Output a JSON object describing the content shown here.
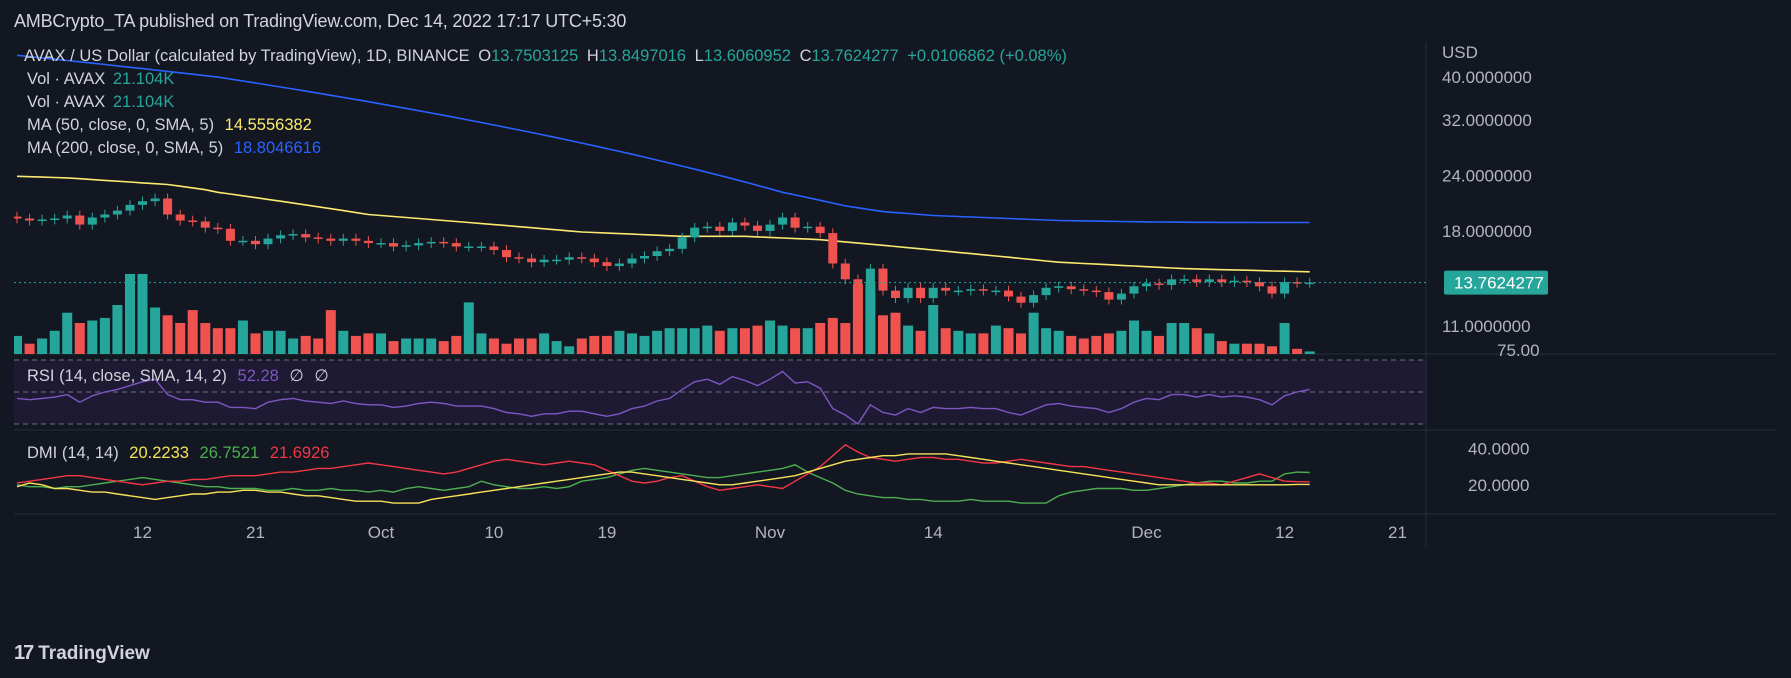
{
  "header": {
    "publisher": "AMBCrypto_TA published on TradingView.com, Dec 14, 2022 17:17 UTC+5:30"
  },
  "legend": {
    "symbol": "AVAX / US Dollar (calculated by TradingView), 1D, BINANCE",
    "o_label": "O",
    "o": "13.7503125",
    "h_label": "H",
    "h": "13.8497016",
    "l_label": "L",
    "l": "13.6060952",
    "c_label": "C",
    "c": "13.7624277",
    "change": "+0.0106862 (+0.08%)",
    "vol1_label": "Vol · AVAX",
    "vol1": "21.104K",
    "vol2_label": "Vol · AVAX",
    "vol2": "21.104K",
    "ma50_label": "MA (50, close, 0, SMA, 5)",
    "ma50": "14.5556382",
    "ma200_label": "MA (200, close, 0, SMA, 5)",
    "ma200": "18.8046616",
    "rsi_label": "RSI (14, close, SMA, 14, 2)",
    "rsi": "52.28",
    "rsi_null1": "∅",
    "rsi_null2": "∅",
    "dmi_label": "DMI (14, 14)",
    "dmi_adx": "20.2233",
    "dmi_plus": "26.7521",
    "dmi_minus": "21.6926"
  },
  "price_axis": {
    "currency": "USD",
    "ticks": [
      "40.0000000",
      "32.0000000",
      "24.0000000",
      "18.0000000",
      "11.0000000"
    ],
    "last_price": "13.7624277",
    "rsi_tick": "75.00"
  },
  "dmi_axis": {
    "ticks": [
      "40.0000",
      "20.0000"
    ]
  },
  "x_axis": {
    "labels": [
      "12",
      "21",
      "Oct",
      "10",
      "19",
      "Nov",
      "14",
      "Dec",
      "12",
      "21"
    ]
  },
  "colors": {
    "up": "#26a69a",
    "down": "#ef5350",
    "ma50": "#fbea6f",
    "ma200": "#2962ff",
    "rsi": "#7e57c2",
    "adx": "#f7e35a",
    "di_plus": "#4caf50",
    "di_minus": "#f23645",
    "price_tag_bg": "#26a69a"
  },
  "footer": {
    "brand": "TradingView",
    "logo_icon": "tradingview-logo-icon"
  },
  "chart_data": {
    "type": "candlestick",
    "title": "AVAX / US Dollar (calculated by TradingView), 1D, BINANCE",
    "ylabel": "USD",
    "ylim": [
      9.5,
      48
    ],
    "y_scale": "log",
    "legend_placement": "top-left",
    "dates": [
      "2022-09-02",
      "2022-09-03",
      "2022-09-04",
      "2022-09-05",
      "2022-09-06",
      "2022-09-07",
      "2022-09-08",
      "2022-09-09",
      "2022-09-10",
      "2022-09-11",
      "2022-09-12",
      "2022-09-13",
      "2022-09-14",
      "2022-09-15",
      "2022-09-16",
      "2022-09-17",
      "2022-09-18",
      "2022-09-19",
      "2022-09-20",
      "2022-09-21",
      "2022-09-22",
      "2022-09-23",
      "2022-09-24",
      "2022-09-25",
      "2022-09-26",
      "2022-09-27",
      "2022-09-28",
      "2022-09-29",
      "2022-09-30",
      "2022-10-01",
      "2022-10-02",
      "2022-10-03",
      "2022-10-04",
      "2022-10-05",
      "2022-10-06",
      "2022-10-07",
      "2022-10-08",
      "2022-10-09",
      "2022-10-10",
      "2022-10-11",
      "2022-10-12",
      "2022-10-13",
      "2022-10-14",
      "2022-10-15",
      "2022-10-16",
      "2022-10-17",
      "2022-10-18",
      "2022-10-19",
      "2022-10-20",
      "2022-10-21",
      "2022-10-22",
      "2022-10-23",
      "2022-10-24",
      "2022-10-25",
      "2022-10-26",
      "2022-10-27",
      "2022-10-28",
      "2022-10-29",
      "2022-10-30",
      "2022-10-31",
      "2022-11-01",
      "2022-11-02",
      "2022-11-03",
      "2022-11-04",
      "2022-11-05",
      "2022-11-06",
      "2022-11-07",
      "2022-11-08",
      "2022-11-09",
      "2022-11-10",
      "2022-11-11",
      "2022-11-12",
      "2022-11-13",
      "2022-11-14",
      "2022-11-15",
      "2022-11-16",
      "2022-11-17",
      "2022-11-18",
      "2022-11-19",
      "2022-11-20",
      "2022-11-21",
      "2022-11-22",
      "2022-11-23",
      "2022-11-24",
      "2022-11-25",
      "2022-11-26",
      "2022-11-27",
      "2022-11-28",
      "2022-11-29",
      "2022-11-30",
      "2022-12-01",
      "2022-12-02",
      "2022-12-03",
      "2022-12-04",
      "2022-12-05",
      "2022-12-06",
      "2022-12-07",
      "2022-12-08",
      "2022-12-09",
      "2022-12-10",
      "2022-12-11",
      "2022-12-12",
      "2022-12-13",
      "2022-12-14"
    ],
    "close": [
      19.2,
      19.0,
      19.1,
      19.2,
      19.5,
      18.6,
      19.3,
      19.6,
      20.0,
      20.6,
      21.0,
      21.3,
      19.6,
      19.0,
      18.9,
      18.3,
      18.2,
      17.1,
      17.1,
      16.8,
      17.3,
      17.6,
      17.7,
      17.4,
      17.3,
      17.1,
      17.3,
      17.1,
      16.9,
      16.9,
      16.6,
      16.7,
      16.9,
      17.0,
      16.9,
      16.6,
      16.6,
      16.6,
      16.3,
      15.7,
      15.6,
      15.3,
      15.5,
      15.5,
      15.7,
      15.6,
      15.3,
      15.0,
      15.2,
      15.6,
      15.8,
      16.2,
      16.4,
      17.4,
      18.3,
      18.4,
      18.0,
      18.8,
      18.5,
      18.0,
      18.6,
      19.3,
      18.3,
      18.4,
      17.8,
      15.2,
      14.0,
      12.3,
      14.8,
      13.2,
      12.7,
      13.4,
      12.7,
      13.4,
      13.2,
      13.2,
      13.3,
      13.2,
      13.2,
      12.8,
      12.4,
      12.9,
      13.4,
      13.5,
      13.3,
      13.2,
      13.1,
      12.6,
      13.0,
      13.5,
      13.7,
      13.6,
      14.0,
      14.0,
      13.8,
      14.0,
      13.8,
      13.9,
      13.8,
      13.5,
      13.0,
      13.8,
      13.75,
      13.76
    ],
    "volume": [
      7,
      4,
      6,
      9,
      16,
      12,
      13,
      14,
      19,
      31,
      31,
      18,
      15,
      12,
      17,
      12,
      10,
      10,
      13,
      8,
      9,
      9,
      6,
      7,
      6,
      17,
      9,
      7,
      8,
      8,
      5,
      6,
      6,
      6,
      5,
      7,
      20,
      8,
      6,
      4,
      6,
      6,
      8,
      5,
      3,
      6,
      7,
      7,
      9,
      8,
      7,
      9,
      10,
      10,
      10,
      11,
      9,
      10,
      10,
      11,
      13,
      11,
      10,
      10,
      12,
      14,
      12,
      27,
      27,
      15,
      16,
      11,
      9,
      19,
      10,
      9,
      8,
      8,
      11,
      10,
      8,
      16,
      10,
      9,
      7,
      6,
      7,
      8,
      9,
      13,
      9,
      7,
      12,
      12,
      10,
      8,
      5,
      4,
      4,
      4,
      3,
      12,
      2,
      1
    ],
    "ma50": [
      23.9,
      23.85,
      23.8,
      23.75,
      23.7,
      23.6,
      23.5,
      23.4,
      23.3,
      23.2,
      23.1,
      23.0,
      22.9,
      22.7,
      22.5,
      22.3,
      22.0,
      21.8,
      21.6,
      21.4,
      21.2,
      21.0,
      20.8,
      20.6,
      20.4,
      20.2,
      20.0,
      19.8,
      19.6,
      19.5,
      19.4,
      19.3,
      19.2,
      19.1,
      19.0,
      18.9,
      18.8,
      18.7,
      18.6,
      18.5,
      18.4,
      18.3,
      18.2,
      18.1,
      18.0,
      17.9,
      17.85,
      17.8,
      17.75,
      17.7,
      17.65,
      17.6,
      17.55,
      17.5,
      17.5,
      17.5,
      17.5,
      17.5,
      17.5,
      17.45,
      17.4,
      17.35,
      17.3,
      17.25,
      17.2,
      17.1,
      17.0,
      16.9,
      16.8,
      16.7,
      16.6,
      16.5,
      16.4,
      16.3,
      16.2,
      16.1,
      16.0,
      15.9,
      15.8,
      15.7,
      15.6,
      15.5,
      15.4,
      15.3,
      15.25,
      15.2,
      15.15,
      15.1,
      15.05,
      15.0,
      14.95,
      14.9,
      14.85,
      14.8,
      14.78,
      14.75,
      14.72,
      14.7,
      14.68,
      14.65,
      14.62,
      14.6,
      14.58,
      14.56
    ],
    "ma200": [
      44.8,
      44.5,
      44.2,
      43.9,
      43.6,
      43.3,
      43.0,
      42.7,
      42.4,
      42.1,
      41.8,
      41.5,
      41.2,
      40.9,
      40.6,
      40.3,
      40.0,
      39.6,
      39.2,
      38.8,
      38.4,
      38.0,
      37.6,
      37.2,
      36.8,
      36.4,
      36.0,
      35.6,
      35.2,
      34.8,
      34.4,
      34.0,
      33.6,
      33.2,
      32.8,
      32.4,
      32.0,
      31.6,
      31.2,
      30.8,
      30.4,
      30.0,
      29.6,
      29.2,
      28.8,
      28.4,
      28.0,
      27.6,
      27.2,
      26.8,
      26.4,
      26.0,
      25.6,
      25.2,
      24.8,
      24.4,
      24.0,
      23.6,
      23.2,
      22.8,
      22.4,
      22.0,
      21.7,
      21.4,
      21.1,
      20.8,
      20.5,
      20.3,
      20.1,
      19.9,
      19.8,
      19.7,
      19.6,
      19.5,
      19.45,
      19.4,
      19.35,
      19.3,
      19.25,
      19.2,
      19.15,
      19.1,
      19.05,
      19.0,
      18.98,
      18.96,
      18.94,
      18.92,
      18.9,
      18.88,
      18.86,
      18.85,
      18.84,
      18.83,
      18.82,
      18.82,
      18.81,
      18.81,
      18.81,
      18.8,
      18.8,
      18.8,
      18.8,
      18.8
    ],
    "rsi": {
      "ylim": [
        25,
        75
      ],
      "bands": [
        30,
        50,
        70
      ],
      "values": [
        45,
        44,
        45,
        46,
        48,
        42,
        47,
        50,
        52,
        55,
        58,
        60,
        48,
        44,
        44,
        42,
        42,
        38,
        38,
        37,
        42,
        44,
        45,
        43,
        42,
        41,
        43,
        41,
        40,
        40,
        38,
        39,
        41,
        42,
        41,
        39,
        39,
        39,
        37,
        34,
        33,
        31,
        33,
        33,
        35,
        35,
        33,
        31,
        33,
        37,
        39,
        43,
        45,
        52,
        58,
        60,
        56,
        62,
        59,
        55,
        60,
        66,
        57,
        58,
        53,
        37,
        32,
        25,
        40,
        34,
        32,
        37,
        34,
        38,
        37,
        37,
        38,
        37,
        37,
        34,
        32,
        36,
        40,
        41,
        39,
        38,
        37,
        34,
        37,
        42,
        45,
        44,
        48,
        48,
        46,
        48,
        46,
        47,
        46,
        44,
        40,
        47,
        50,
        52
      ]
    },
    "dmi": {
      "ylim": [
        4,
        49
      ],
      "adx": [
        19,
        21,
        20,
        18,
        18,
        17,
        16,
        16,
        15,
        14,
        13,
        12,
        13,
        14,
        15,
        15,
        16,
        16,
        17,
        17,
        16,
        16,
        15,
        14,
        14,
        13,
        12,
        11,
        11,
        11,
        10,
        10,
        10,
        12,
        13,
        14,
        15,
        16,
        17,
        18,
        19,
        20,
        21,
        22,
        23,
        24,
        25,
        26,
        27,
        27,
        26,
        25,
        24,
        23,
        22,
        21,
        20,
        20,
        21,
        22,
        23,
        24,
        25,
        27,
        29,
        31,
        33,
        34,
        35,
        36,
        36,
        37,
        37,
        37,
        37,
        36,
        35,
        34,
        33,
        32,
        31,
        30,
        29,
        28,
        27,
        26,
        25,
        24,
        23,
        22,
        21,
        20,
        20,
        20,
        20,
        20,
        20,
        20,
        20,
        20,
        20,
        20,
        20.22,
        20.22
      ],
      "di_plus": [
        20,
        19,
        19,
        18,
        19,
        19,
        20,
        21,
        22,
        23,
        24,
        23,
        22,
        21,
        20,
        19,
        19,
        18,
        18,
        18,
        17,
        17,
        18,
        17,
        17,
        18,
        17,
        17,
        16,
        17,
        16,
        18,
        19,
        18,
        17,
        18,
        19,
        22,
        20,
        19,
        18,
        18,
        19,
        18,
        19,
        22,
        23,
        24,
        26,
        28,
        29,
        28,
        27,
        26,
        25,
        24,
        24,
        25,
        26,
        27,
        28,
        29,
        31,
        27,
        24,
        21,
        17,
        15,
        14,
        13,
        13,
        12,
        12,
        11,
        11,
        11,
        12,
        11,
        11,
        11,
        10,
        10,
        10,
        14,
        16,
        17,
        18,
        18,
        18,
        17,
        17,
        18,
        19,
        20,
        21,
        22,
        22,
        21,
        21,
        22,
        22,
        26,
        27,
        26.75
      ],
      "di_minus": [
        21,
        22,
        23,
        24,
        25,
        25,
        24,
        23,
        22,
        21,
        20,
        21,
        22,
        22,
        23,
        23,
        24,
        25,
        25,
        25,
        26,
        27,
        27,
        28,
        29,
        29,
        30,
        31,
        32,
        31,
        30,
        29,
        28,
        27,
        26,
        27,
        29,
        31,
        33,
        34,
        33,
        32,
        31,
        32,
        33,
        32,
        31,
        28,
        25,
        22,
        21,
        22,
        24,
        25,
        22,
        19,
        17,
        18,
        19,
        20,
        19,
        18,
        22,
        26,
        30,
        36,
        42,
        38,
        35,
        34,
        33,
        34,
        35,
        35,
        34,
        34,
        33,
        32,
        32,
        33,
        34,
        33,
        32,
        31,
        30,
        30,
        29,
        28,
        27,
        26,
        25,
        24,
        23,
        22,
        21,
        21,
        20,
        22,
        24,
        26,
        24,
        22,
        21.7,
        21.69
      ]
    },
    "x_tick_labels": [
      {
        "label": "12",
        "date": "2022-09-12"
      },
      {
        "label": "21",
        "date": "2022-09-21"
      },
      {
        "label": "Oct",
        "date": "2022-10-01"
      },
      {
        "label": "10",
        "date": "2022-10-10"
      },
      {
        "label": "19",
        "date": "2022-10-19"
      },
      {
        "label": "Nov",
        "date": "2022-11-01"
      },
      {
        "label": "14",
        "date": "2022-11-14"
      },
      {
        "label": "Dec",
        "date": "2022-12-01"
      },
      {
        "label": "12",
        "date": "2022-12-12"
      },
      {
        "label": "21",
        "date": "2022-12-21"
      }
    ]
  }
}
